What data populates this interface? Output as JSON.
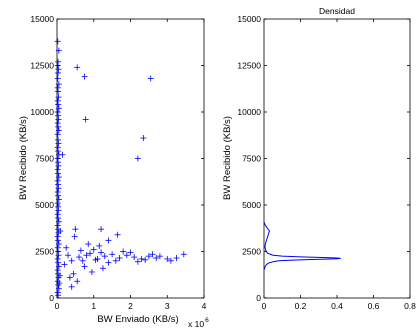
{
  "chart_data": [
    {
      "type": "scatter",
      "title": "",
      "xlabel": "BW Enviado (KB/s)",
      "ylabel": "BW Recibido (KB/s)",
      "x_multiplier_base": "x 10",
      "x_multiplier_exponent": "6",
      "xlim": [
        0,
        4
      ],
      "ylim": [
        0,
        15000
      ],
      "xticks": [
        0,
        1,
        2,
        3,
        4
      ],
      "yticks": [
        0,
        2500,
        5000,
        7500,
        10000,
        12500,
        15000
      ],
      "ytick_labels": [
        "0",
        "2500",
        "5000",
        "7500",
        "10000",
        "12500",
        "15000"
      ],
      "grid": false,
      "marker": "+",
      "color": "#0000ff",
      "points": [
        [
          0.02,
          13800
        ],
        [
          0.05,
          13300
        ],
        [
          0.03,
          12700
        ],
        [
          0.02,
          12500
        ],
        [
          0.04,
          12300
        ],
        [
          0.03,
          12100
        ],
        [
          0.02,
          11800
        ],
        [
          0.05,
          11500
        ],
        [
          0.02,
          11300
        ],
        [
          0.03,
          11100
        ],
        [
          0.04,
          10800
        ],
        [
          0.02,
          10600
        ],
        [
          0.03,
          10400
        ],
        [
          0.05,
          10200
        ],
        [
          0.02,
          10000
        ],
        [
          0.03,
          9800
        ],
        [
          0.04,
          9600
        ],
        [
          0.02,
          9400
        ],
        [
          0.03,
          9200
        ],
        [
          0.05,
          9000
        ],
        [
          0.02,
          8800
        ],
        [
          0.03,
          8500
        ],
        [
          0.04,
          8300
        ],
        [
          0.02,
          8100
        ],
        [
          0.03,
          7900
        ],
        [
          0.05,
          7700
        ],
        [
          0.02,
          7500
        ],
        [
          0.03,
          7300
        ],
        [
          0.04,
          7100
        ],
        [
          0.02,
          6900
        ],
        [
          0.03,
          6700
        ],
        [
          0.05,
          6500
        ],
        [
          0.02,
          6300
        ],
        [
          0.03,
          6100
        ],
        [
          0.04,
          5900
        ],
        [
          0.02,
          5700
        ],
        [
          0.03,
          5500
        ],
        [
          0.05,
          5300
        ],
        [
          0.02,
          5100
        ],
        [
          0.03,
          4900
        ],
        [
          0.04,
          4700
        ],
        [
          0.02,
          4500
        ],
        [
          0.03,
          4300
        ],
        [
          0.05,
          4100
        ],
        [
          0.02,
          3900
        ],
        [
          0.03,
          3700
        ],
        [
          0.04,
          3500
        ],
        [
          0.02,
          3300
        ],
        [
          0.03,
          3100
        ],
        [
          0.05,
          2900
        ],
        [
          0.02,
          2700
        ],
        [
          0.03,
          2500
        ],
        [
          0.04,
          2300
        ],
        [
          0.02,
          2100
        ],
        [
          0.03,
          1900
        ],
        [
          0.05,
          1700
        ],
        [
          0.02,
          1500
        ],
        [
          0.03,
          1300
        ],
        [
          0.04,
          1100
        ],
        [
          0.02,
          900
        ],
        [
          0.03,
          700
        ],
        [
          0.05,
          500
        ],
        [
          0.02,
          300
        ],
        [
          0.03,
          150
        ],
        [
          0.08,
          1200
        ],
        [
          0.06,
          800
        ],
        [
          0.09,
          3600
        ],
        [
          0.15,
          7700
        ],
        [
          0.55,
          12400
        ],
        [
          0.75,
          11900
        ],
        [
          0.78,
          9600
        ],
        [
          2.55,
          11800
        ],
        [
          2.35,
          8600
        ],
        [
          2.2,
          7500
        ],
        [
          0.48,
          3300
        ],
        [
          0.5,
          3700
        ],
        [
          0.85,
          2900
        ],
        [
          1.15,
          2800
        ],
        [
          1.4,
          3100
        ],
        [
          1.65,
          3400
        ],
        [
          1.2,
          3700
        ],
        [
          0.35,
          1100
        ],
        [
          0.55,
          900
        ],
        [
          0.4,
          600
        ],
        [
          0.45,
          1300
        ],
        [
          0.75,
          1700
        ],
        [
          1.25,
          1600
        ],
        [
          0.95,
          1400
        ],
        [
          0.3,
          2300
        ],
        [
          0.6,
          2200
        ],
        [
          0.9,
          2400
        ],
        [
          1.1,
          2100
        ],
        [
          1.3,
          2250
        ],
        [
          1.5,
          2350
        ],
        [
          1.7,
          2150
        ],
        [
          1.9,
          2300
        ],
        [
          2.1,
          2200
        ],
        [
          2.3,
          2100
        ],
        [
          2.5,
          2250
        ],
        [
          2.7,
          2150
        ],
        [
          3.0,
          2100
        ],
        [
          3.1,
          2000
        ],
        [
          3.25,
          2150
        ],
        [
          3.45,
          2350
        ],
        [
          0.2,
          1800
        ],
        [
          0.7,
          2000
        ],
        [
          1.0,
          2600
        ],
        [
          1.4,
          1900
        ],
        [
          1.8,
          2500
        ],
        [
          2.2,
          1950
        ],
        [
          2.6,
          2350
        ],
        [
          0.25,
          2700
        ],
        [
          0.65,
          2550
        ],
        [
          1.05,
          2050
        ],
        [
          1.6,
          2000
        ],
        [
          2.0,
          2450
        ],
        [
          2.4,
          2050
        ],
        [
          0.4,
          2000
        ],
        [
          0.8,
          2300
        ],
        [
          1.2,
          2450
        ],
        [
          2.8,
          2250
        ]
      ]
    },
    {
      "type": "line",
      "title": "Densidad",
      "xlabel": "",
      "ylabel": "BW Recibido (KB/s)",
      "xlim": [
        0,
        0.8
      ],
      "ylim": [
        0,
        15000
      ],
      "xticks": [
        0,
        0.2,
        0.4,
        0.6,
        0.8
      ],
      "xtick_labels": [
        "0",
        "0.2",
        "0.4",
        "0.6",
        "0.8"
      ],
      "yticks": [
        0,
        2500,
        5000,
        7500,
        10000,
        12500,
        15000
      ],
      "ytick_labels": [
        "0",
        "2500",
        "5000",
        "7500",
        "10000",
        "12500",
        "15000"
      ],
      "grid": false,
      "color": "#0000ff",
      "series": [
        {
          "x": [
            0.0,
            0.005,
            0.01,
            0.02,
            0.03,
            0.05,
            0.08,
            0.14,
            0.24,
            0.34,
            0.4,
            0.42,
            0.4,
            0.32,
            0.2,
            0.1,
            0.05,
            0.02,
            0.01,
            0.005,
            0.01,
            0.02,
            0.03,
            0.015,
            0.005,
            0.0
          ],
          "y": [
            1500,
            1650,
            1750,
            1850,
            1900,
            1950,
            2000,
            2030,
            2060,
            2090,
            2110,
            2130,
            2150,
            2180,
            2210,
            2250,
            2300,
            2400,
            2550,
            2750,
            3000,
            3300,
            3600,
            3800,
            3950,
            4100
          ]
        }
      ]
    }
  ]
}
